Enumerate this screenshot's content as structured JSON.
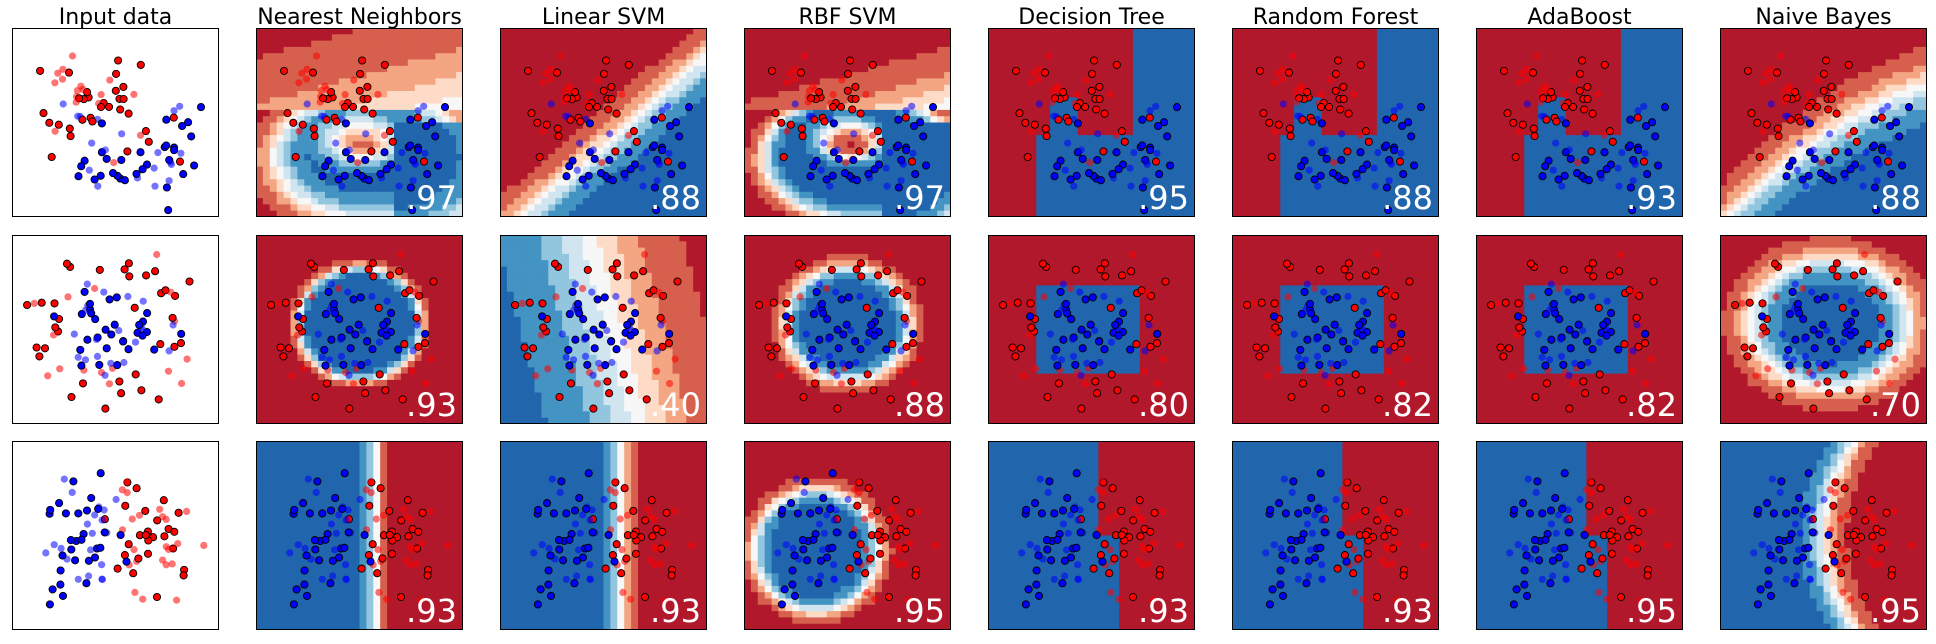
{
  "figure": {
    "colors": {
      "red": "#ff0000",
      "blue": "#0000ff",
      "cmap_red_to_blue": [
        "#b2182b",
        "#d6604d",
        "#f4a582",
        "#fddbc7",
        "#f7f7f7",
        "#d1e5f0",
        "#92c5de",
        "#4393c3",
        "#2166ac"
      ]
    },
    "column_titles": [
      "Input data",
      "Nearest Neighbors",
      "Linear SVM",
      "RBF SVM",
      "Decision Tree",
      "Random Forest",
      "AdaBoost",
      "Naive Bayes"
    ],
    "datasets": [
      "moons",
      "circles",
      "linearly_separable"
    ]
  },
  "chart_data": [
    {
      "type": "scatter",
      "title": "Input data",
      "row": 1,
      "dataset": "moons",
      "xlabel": "",
      "ylabel": "",
      "axis_ticks": "none",
      "grid": false
    },
    {
      "type": "heatmap",
      "title": "Nearest Neighbors",
      "row": 1,
      "dataset": "moons",
      "score": ".97",
      "decision_shape": "moons",
      "softness": 0.8
    },
    {
      "type": "heatmap",
      "title": "Linear SVM",
      "row": 1,
      "dataset": "moons",
      "score": ".88",
      "decision_shape": "linear-diag",
      "softness": 0.6
    },
    {
      "type": "heatmap",
      "title": "RBF SVM",
      "row": 1,
      "dataset": "moons",
      "score": ".97",
      "decision_shape": "moons",
      "softness": 0.45
    },
    {
      "type": "heatmap",
      "title": "Decision Tree",
      "row": 1,
      "dataset": "moons",
      "score": ".95",
      "decision_shape": "tree-moons",
      "softness": 0.1
    },
    {
      "type": "heatmap",
      "title": "Random Forest",
      "row": 1,
      "dataset": "moons",
      "score": ".88",
      "decision_shape": "tree-moons",
      "softness": 0.5
    },
    {
      "type": "heatmap",
      "title": "AdaBoost",
      "row": 1,
      "dataset": "moons",
      "score": ".93",
      "decision_shape": "tree-moons",
      "softness": 0.4
    },
    {
      "type": "heatmap",
      "title": "Naive Bayes",
      "row": 1,
      "dataset": "moons",
      "score": ".88",
      "decision_shape": "quadratic-diag",
      "softness": 0.7
    },
    {
      "type": "scatter",
      "title": "Input data",
      "row": 2,
      "dataset": "circles",
      "xlabel": "",
      "ylabel": "",
      "axis_ticks": "none",
      "grid": false
    },
    {
      "type": "heatmap",
      "title": "Nearest Neighbors",
      "row": 2,
      "dataset": "circles",
      "score": ".93",
      "decision_shape": "circle-jagged",
      "softness": 0.3
    },
    {
      "type": "heatmap",
      "title": "Linear SVM",
      "row": 2,
      "dataset": "circles",
      "score": ".40",
      "decision_shape": "linear-steep",
      "softness": 1.0
    },
    {
      "type": "heatmap",
      "title": "RBF SVM",
      "row": 2,
      "dataset": "circles",
      "score": ".88",
      "decision_shape": "circle",
      "softness": 0.5
    },
    {
      "type": "heatmap",
      "title": "Decision Tree",
      "row": 2,
      "dataset": "circles",
      "score": ".80",
      "decision_shape": "box",
      "softness": 0.1
    },
    {
      "type": "heatmap",
      "title": "Random Forest",
      "row": 2,
      "dataset": "circles",
      "score": ".82",
      "decision_shape": "box",
      "softness": 0.5
    },
    {
      "type": "heatmap",
      "title": "AdaBoost",
      "row": 2,
      "dataset": "circles",
      "score": ".82",
      "decision_shape": "box",
      "softness": 0.4
    },
    {
      "type": "heatmap",
      "title": "Naive Bayes",
      "row": 2,
      "dataset": "circles",
      "score": ".70",
      "decision_shape": "ellipse",
      "softness": 0.8
    },
    {
      "type": "scatter",
      "title": "Input data",
      "row": 3,
      "dataset": "linearly_separable",
      "xlabel": "",
      "ylabel": "",
      "axis_ticks": "none",
      "grid": false
    },
    {
      "type": "heatmap",
      "title": "Nearest Neighbors",
      "row": 3,
      "dataset": "linearly_separable",
      "score": ".93",
      "decision_shape": "vertical-jagged",
      "softness": 0.3
    },
    {
      "type": "heatmap",
      "title": "Linear SVM",
      "row": 3,
      "dataset": "linearly_separable",
      "score": ".93",
      "decision_shape": "vertical",
      "softness": 0.4
    },
    {
      "type": "heatmap",
      "title": "RBF SVM",
      "row": 3,
      "dataset": "linearly_separable",
      "score": ".95",
      "decision_shape": "blob",
      "softness": 0.5
    },
    {
      "type": "heatmap",
      "title": "Decision Tree",
      "row": 3,
      "dataset": "linearly_separable",
      "score": ".93",
      "decision_shape": "vertical-step",
      "softness": 0.1
    },
    {
      "type": "heatmap",
      "title": "Random Forest",
      "row": 3,
      "dataset": "linearly_separable",
      "score": ".93",
      "decision_shape": "vertical-step",
      "softness": 0.5
    },
    {
      "type": "heatmap",
      "title": "AdaBoost",
      "row": 3,
      "dataset": "linearly_separable",
      "score": ".95",
      "decision_shape": "vertical-step",
      "softness": 0.4
    },
    {
      "type": "heatmap",
      "title": "Naive Bayes",
      "row": 3,
      "dataset": "linearly_separable",
      "score": ".95",
      "decision_shape": "curve",
      "softness": 0.5
    }
  ]
}
